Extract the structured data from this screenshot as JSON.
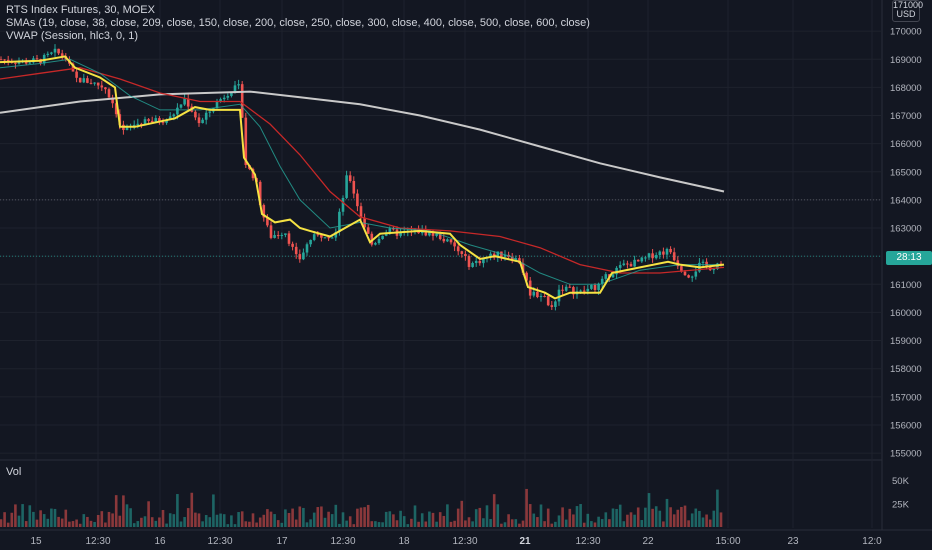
{
  "legend": {
    "title": "RTS Index Futures, 30, MOEX",
    "sma": "SMAs (19, close, 38, close, 209, close, 150, close, 200, close, 250, close, 300, close, 400, close, 500, close, 600, close)",
    "vwap": "VWAP (Session, hlc3, 0, 1)"
  },
  "volume_pane": {
    "label": "Vol"
  },
  "price_axis": {
    "currency_top": "171000",
    "currency_unit": "USD",
    "last_price_tag": "28:13",
    "ticks": [
      "170000",
      "169000",
      "168000",
      "167000",
      "166000",
      "165000",
      "164000",
      "163000",
      "162000",
      "161000",
      "160000",
      "159000",
      "158000",
      "157000",
      "156000",
      "155000"
    ]
  },
  "volume_axis": {
    "ticks": [
      "50K",
      "25K"
    ]
  },
  "time_axis": {
    "ticks": [
      "15",
      "12:30",
      "16",
      "12:30",
      "17",
      "12:30",
      "18",
      "12:30",
      "21",
      "12:30",
      "22",
      "15:00",
      "23",
      "12:0"
    ]
  },
  "colors": {
    "background": "#131722",
    "up": "#26a69a",
    "down": "#ef5350",
    "vwap": "#f5e243",
    "sma_fast": "#26a69a",
    "sma_mid": "#c62828",
    "sma_slow": "#c9c9c9",
    "last_price": "#26a69a"
  },
  "chart_data": {
    "type": "candlestick",
    "ylim": [
      154800,
      171200
    ],
    "volume_ylim": [
      0,
      70000
    ],
    "horizontal_levels": [
      164000,
      162000
    ],
    "close_path": [
      {
        "x": 0,
        "y": 169000
      },
      {
        "x": 20,
        "y": 168900
      },
      {
        "x": 40,
        "y": 168950
      },
      {
        "x": 55,
        "y": 169250
      },
      {
        "x": 65,
        "y": 169100
      },
      {
        "x": 75,
        "y": 168300
      },
      {
        "x": 90,
        "y": 168200
      },
      {
        "x": 105,
        "y": 168000
      },
      {
        "x": 115,
        "y": 167300
      },
      {
        "x": 122,
        "y": 166400
      },
      {
        "x": 135,
        "y": 166700
      },
      {
        "x": 155,
        "y": 166800
      },
      {
        "x": 170,
        "y": 166900
      },
      {
        "x": 185,
        "y": 167600
      },
      {
        "x": 200,
        "y": 166700
      },
      {
        "x": 215,
        "y": 167400
      },
      {
        "x": 230,
        "y": 167900
      },
      {
        "x": 240,
        "y": 168000
      },
      {
        "x": 246,
        "y": 165200
      },
      {
        "x": 255,
        "y": 164800
      },
      {
        "x": 262,
        "y": 163600
      },
      {
        "x": 270,
        "y": 162700
      },
      {
        "x": 285,
        "y": 162900
      },
      {
        "x": 298,
        "y": 161800
      },
      {
        "x": 310,
        "y": 162600
      },
      {
        "x": 325,
        "y": 162800
      },
      {
        "x": 335,
        "y": 162700
      },
      {
        "x": 348,
        "y": 165000
      },
      {
        "x": 360,
        "y": 163500
      },
      {
        "x": 372,
        "y": 162400
      },
      {
        "x": 385,
        "y": 162900
      },
      {
        "x": 400,
        "y": 162800
      },
      {
        "x": 420,
        "y": 162900
      },
      {
        "x": 440,
        "y": 162700
      },
      {
        "x": 455,
        "y": 162300
      },
      {
        "x": 470,
        "y": 161700
      },
      {
        "x": 490,
        "y": 162000
      },
      {
        "x": 505,
        "y": 162100
      },
      {
        "x": 520,
        "y": 161800
      },
      {
        "x": 530,
        "y": 160700
      },
      {
        "x": 545,
        "y": 160600
      },
      {
        "x": 550,
        "y": 160000
      },
      {
        "x": 560,
        "y": 160900
      },
      {
        "x": 580,
        "y": 160700
      },
      {
        "x": 600,
        "y": 161000
      },
      {
        "x": 610,
        "y": 161400
      },
      {
        "x": 625,
        "y": 161700
      },
      {
        "x": 640,
        "y": 161800
      },
      {
        "x": 655,
        "y": 162100
      },
      {
        "x": 670,
        "y": 162200
      },
      {
        "x": 680,
        "y": 161600
      },
      {
        "x": 690,
        "y": 161300
      },
      {
        "x": 700,
        "y": 161700
      },
      {
        "x": 712,
        "y": 161600
      },
      {
        "x": 724,
        "y": 161900
      }
    ],
    "vwap_path": [
      {
        "x": 0,
        "y": 168900
      },
      {
        "x": 40,
        "y": 168950
      },
      {
        "x": 65,
        "y": 169100
      },
      {
        "x": 75,
        "y": 168700
      },
      {
        "x": 100,
        "y": 168350
      },
      {
        "x": 115,
        "y": 168000
      },
      {
        "x": 120,
        "y": 166600
      },
      {
        "x": 135,
        "y": 166600
      },
      {
        "x": 175,
        "y": 166900
      },
      {
        "x": 195,
        "y": 167300
      },
      {
        "x": 210,
        "y": 167200
      },
      {
        "x": 240,
        "y": 167200
      },
      {
        "x": 244,
        "y": 165500
      },
      {
        "x": 255,
        "y": 164900
      },
      {
        "x": 262,
        "y": 163500
      },
      {
        "x": 275,
        "y": 163200
      },
      {
        "x": 290,
        "y": 163300
      },
      {
        "x": 300,
        "y": 163000
      },
      {
        "x": 310,
        "y": 162900
      },
      {
        "x": 330,
        "y": 162700
      },
      {
        "x": 345,
        "y": 163000
      },
      {
        "x": 360,
        "y": 163300
      },
      {
        "x": 370,
        "y": 162500
      },
      {
        "x": 380,
        "y": 162800
      },
      {
        "x": 420,
        "y": 162900
      },
      {
        "x": 450,
        "y": 162800
      },
      {
        "x": 460,
        "y": 162400
      },
      {
        "x": 480,
        "y": 161900
      },
      {
        "x": 495,
        "y": 162000
      },
      {
        "x": 520,
        "y": 161800
      },
      {
        "x": 528,
        "y": 160900
      },
      {
        "x": 545,
        "y": 160700
      },
      {
        "x": 555,
        "y": 160500
      },
      {
        "x": 570,
        "y": 160700
      },
      {
        "x": 600,
        "y": 160700
      },
      {
        "x": 612,
        "y": 161400
      },
      {
        "x": 640,
        "y": 161600
      },
      {
        "x": 668,
        "y": 161800
      },
      {
        "x": 680,
        "y": 161700
      },
      {
        "x": 700,
        "y": 161600
      },
      {
        "x": 724,
        "y": 161700
      }
    ],
    "sma_fast_path": [
      {
        "x": 0,
        "y": 168700
      },
      {
        "x": 40,
        "y": 168850
      },
      {
        "x": 70,
        "y": 169000
      },
      {
        "x": 100,
        "y": 168500
      },
      {
        "x": 130,
        "y": 167700
      },
      {
        "x": 160,
        "y": 167200
      },
      {
        "x": 200,
        "y": 167200
      },
      {
        "x": 240,
        "y": 167400
      },
      {
        "x": 260,
        "y": 166600
      },
      {
        "x": 280,
        "y": 165200
      },
      {
        "x": 300,
        "y": 164000
      },
      {
        "x": 330,
        "y": 163000
      },
      {
        "x": 360,
        "y": 163200
      },
      {
        "x": 390,
        "y": 163000
      },
      {
        "x": 430,
        "y": 162900
      },
      {
        "x": 470,
        "y": 162400
      },
      {
        "x": 510,
        "y": 162000
      },
      {
        "x": 540,
        "y": 161400
      },
      {
        "x": 570,
        "y": 161000
      },
      {
        "x": 600,
        "y": 161000
      },
      {
        "x": 640,
        "y": 161500
      },
      {
        "x": 680,
        "y": 161700
      },
      {
        "x": 724,
        "y": 161700
      }
    ],
    "sma_mid_path": [
      {
        "x": 0,
        "y": 168300
      },
      {
        "x": 40,
        "y": 168500
      },
      {
        "x": 80,
        "y": 168700
      },
      {
        "x": 120,
        "y": 168300
      },
      {
        "x": 160,
        "y": 167800
      },
      {
        "x": 200,
        "y": 167500
      },
      {
        "x": 240,
        "y": 167500
      },
      {
        "x": 270,
        "y": 166700
      },
      {
        "x": 300,
        "y": 165600
      },
      {
        "x": 330,
        "y": 164300
      },
      {
        "x": 360,
        "y": 163400
      },
      {
        "x": 400,
        "y": 163000
      },
      {
        "x": 450,
        "y": 162900
      },
      {
        "x": 500,
        "y": 162700
      },
      {
        "x": 540,
        "y": 162300
      },
      {
        "x": 580,
        "y": 161700
      },
      {
        "x": 620,
        "y": 161400
      },
      {
        "x": 660,
        "y": 161400
      },
      {
        "x": 724,
        "y": 161600
      }
    ],
    "sma_slow_path": [
      {
        "x": 0,
        "y": 167100
      },
      {
        "x": 80,
        "y": 167500
      },
      {
        "x": 160,
        "y": 167750
      },
      {
        "x": 250,
        "y": 167850
      },
      {
        "x": 300,
        "y": 167650
      },
      {
        "x": 360,
        "y": 167400
      },
      {
        "x": 420,
        "y": 167000
      },
      {
        "x": 480,
        "y": 166500
      },
      {
        "x": 540,
        "y": 165900
      },
      {
        "x": 600,
        "y": 165300
      },
      {
        "x": 660,
        "y": 164800
      },
      {
        "x": 724,
        "y": 164300
      }
    ]
  }
}
